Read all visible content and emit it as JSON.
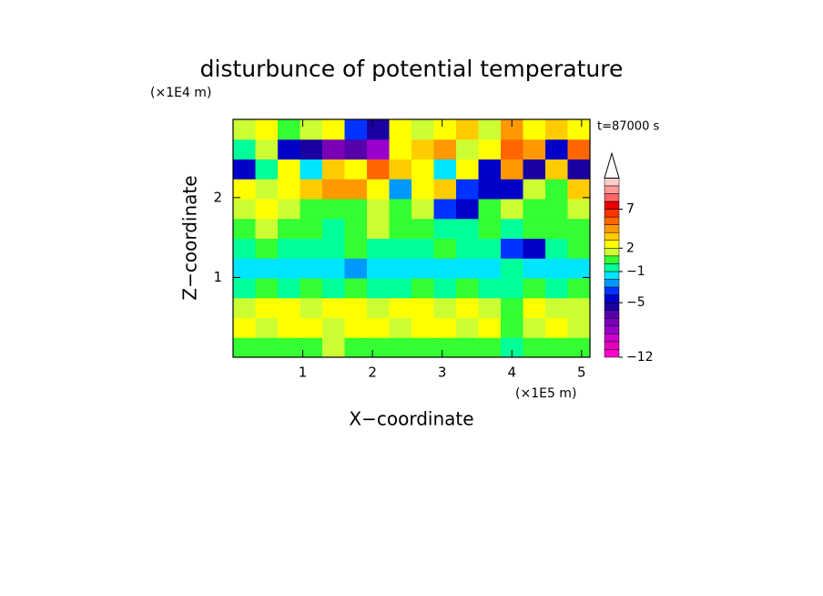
{
  "chart_data": {
    "type": "contour",
    "title": "disturbunce of potential temperature",
    "y_unit_label": "(×1E4 m)",
    "x_unit_label": "(×1E5 m)",
    "time_label": "t=87000 s",
    "xlabel": "X−coordinate",
    "ylabel": "Z−coordinate",
    "xlim": [
      0,
      5.12
    ],
    "ylim": [
      0,
      2.98
    ],
    "xticks": [
      1,
      2,
      3,
      4,
      5
    ],
    "yticks": [
      1,
      2
    ],
    "x": [
      0.16,
      0.48,
      0.8,
      1.12,
      1.44,
      1.76,
      2.08,
      2.4,
      2.72,
      3.04,
      3.36,
      3.68,
      4.0,
      4.32,
      4.64,
      4.96
    ],
    "y": [
      0.124,
      0.372,
      0.621,
      0.869,
      1.117,
      1.366,
      1.614,
      1.862,
      2.111,
      2.359,
      2.607,
      2.856
    ],
    "z": [
      [
        1,
        1,
        1,
        1,
        2,
        1,
        1,
        1,
        1,
        1,
        1,
        1,
        0,
        1,
        1,
        1
      ],
      [
        3,
        2,
        3,
        3,
        2,
        3,
        3,
        2,
        3,
        3,
        2,
        3,
        1,
        2,
        3,
        2
      ],
      [
        2,
        3,
        3,
        2,
        3,
        3,
        2,
        3,
        3,
        2,
        3,
        2,
        1,
        3,
        2,
        2
      ],
      [
        0,
        1,
        0,
        1,
        0,
        1,
        0,
        0,
        1,
        0,
        1,
        0,
        0,
        1,
        0,
        1
      ],
      [
        -1,
        -1,
        -1,
        -1,
        -1,
        -2,
        -1,
        -1,
        -1,
        -1,
        -1,
        -1,
        0,
        -1,
        -1,
        -1
      ],
      [
        0,
        1,
        0,
        0,
        0,
        1,
        0,
        0,
        0,
        1,
        0,
        0,
        -3,
        -4,
        0,
        1
      ],
      [
        1,
        2,
        1,
        1,
        0,
        1,
        2,
        1,
        1,
        0,
        0,
        1,
        0,
        1,
        1,
        1
      ],
      [
        2,
        3,
        2,
        1,
        1,
        1,
        2,
        1,
        2,
        -3,
        -4,
        1,
        2,
        1,
        1,
        2
      ],
      [
        3,
        2,
        3,
        4,
        5,
        5,
        3,
        -2,
        3,
        4,
        -3,
        -4,
        -4,
        2,
        1,
        4
      ],
      [
        -4,
        0,
        3,
        -1,
        4,
        3,
        6,
        4,
        3,
        -1,
        3,
        -4,
        5,
        -5,
        4,
        -5
      ],
      [
        0,
        2,
        -4,
        -5,
        -7,
        -6,
        -8,
        3,
        4,
        5,
        2,
        3,
        6,
        5,
        -4,
        6
      ],
      [
        2,
        3,
        1,
        2,
        3,
        -3,
        -5,
        3,
        2,
        3,
        4,
        2,
        5,
        3,
        4,
        3
      ]
    ],
    "levels": [
      -12,
      -11,
      -10,
      -9,
      -8,
      -7,
      -6,
      -5,
      -4,
      -3,
      -2,
      -1,
      0,
      1,
      2,
      3,
      4,
      5,
      6,
      7,
      8,
      9,
      10,
      11
    ],
    "colors": [
      "#ff00cc",
      "#e600bf",
      "#cc00cc",
      "#9900cc",
      "#7a00b8",
      "#5500aa",
      "#1a00a0",
      "#0000c8",
      "#0033ff",
      "#0099ff",
      "#00e5ff",
      "#00ff99",
      "#33ff33",
      "#ccff33",
      "#ffff00",
      "#ffcc00",
      "#ff9900",
      "#ff6600",
      "#ff3300",
      "#e60000",
      "#ff6666",
      "#ff9999",
      "#ffcccc"
    ],
    "colorbar_ticks": [
      {
        "value": -12,
        "label": "−12"
      },
      {
        "value": -5,
        "label": "−5"
      },
      {
        "value": -1,
        "label": "−1"
      },
      2,
      7
    ]
  }
}
